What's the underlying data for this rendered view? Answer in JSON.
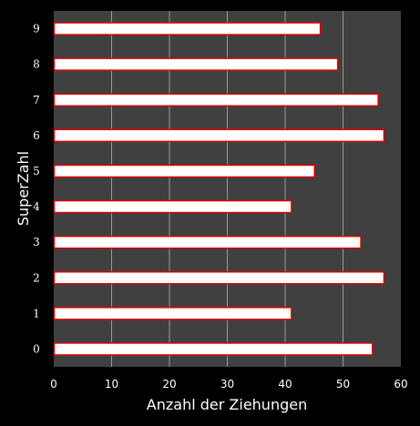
{
  "chart_data": {
    "type": "bar",
    "orientation": "horizontal",
    "categories": [
      "0",
      "1",
      "2",
      "3",
      "4",
      "5",
      "6",
      "7",
      "8",
      "9"
    ],
    "values": [
      55,
      41,
      57,
      53,
      41,
      45,
      57,
      56,
      49,
      46
    ],
    "xlabel": "Anzahl der Ziehungen",
    "ylabel": "SuperZahl",
    "xlim": [
      0,
      60
    ],
    "xticks": [
      "0",
      "10",
      "20",
      "30",
      "40",
      "50",
      "60"
    ],
    "grid": "vertical",
    "colors": {
      "page_background": "#000000",
      "plot_background": "#404040",
      "bar_fill": "#ffffff",
      "bar_edge": "#e00000",
      "grid": "#9a9a9a",
      "text": "#ffffff"
    }
  }
}
